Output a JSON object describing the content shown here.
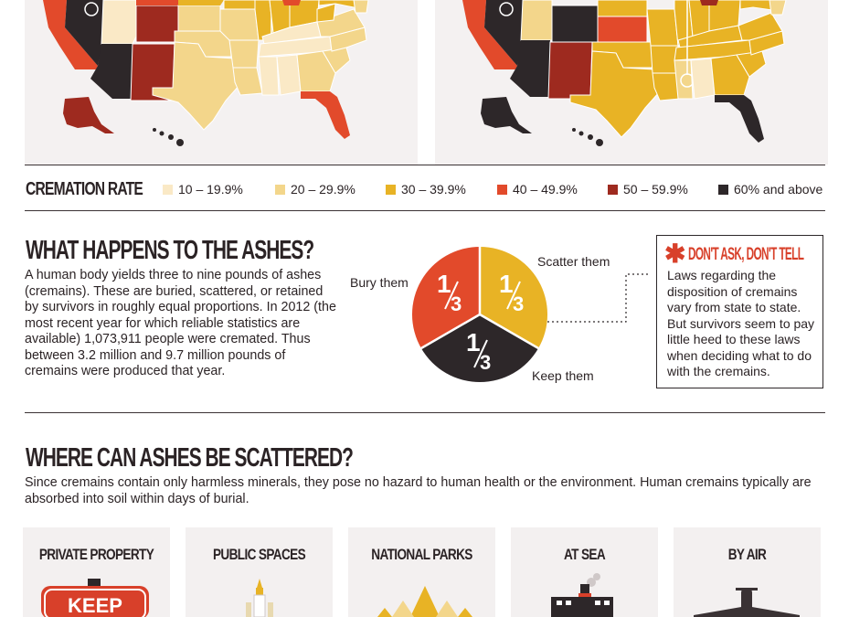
{
  "colors": {
    "c10": "#fae9c6",
    "c20": "#f3d68b",
    "c30": "#e8b325",
    "c40": "#e24a2b",
    "c50": "#9e2a1f",
    "c60": "#2d2729",
    "map_bg": "#f4f1f1",
    "accent": "#d8402a"
  },
  "legend": {
    "title": "CREMATION RATE",
    "items": [
      {
        "label": "10 – 19.9%"
      },
      {
        "label": "20 – 29.9%"
      },
      {
        "label": "30 – 39.9%"
      },
      {
        "label": "40 – 49.9%"
      },
      {
        "label": "50 – 59.9%"
      },
      {
        "label": "60% and above"
      }
    ]
  },
  "ashes": {
    "heading": "WHAT HAPPENS TO THE ASHES?",
    "body": "A human body yields three to nine pounds of ashes (cremains). These are buried, scattered, or retained by survivors in roughly equal proportions. In 2012 (the most recent year for which reliable statistics are available) 1,073,911 people were cremated. Thus between 3.2 million and 9.7 million pounds of cremains were produced that year.",
    "pie": {
      "fraction_num": "1",
      "fraction_den": "3",
      "labels": {
        "bury": "Bury them",
        "scatter": "Scatter them",
        "keep": "Keep them"
      }
    }
  },
  "sidebar": {
    "title": "DON'T ASK, DON'T TELL",
    "body": "Laws regarding the disposition of cremains vary from state to state. But survivors seem to pay little heed to these laws when deciding what to do with the cremains."
  },
  "scatter": {
    "heading": "WHERE CAN ASHES BE SCATTERED?",
    "body": "Since cremains contain only harmless minerals, they pose no hazard to human health or the environment. Human cremains typically are absorbed into soil within days of burial.",
    "cards": [
      {
        "title": "PRIVATE PROPERTY",
        "sign": "KEEP"
      },
      {
        "title": "PUBLIC SPACES"
      },
      {
        "title": "NATIONAL PARKS"
      },
      {
        "title": "AT SEA"
      },
      {
        "title": "BY AIR"
      }
    ]
  }
}
